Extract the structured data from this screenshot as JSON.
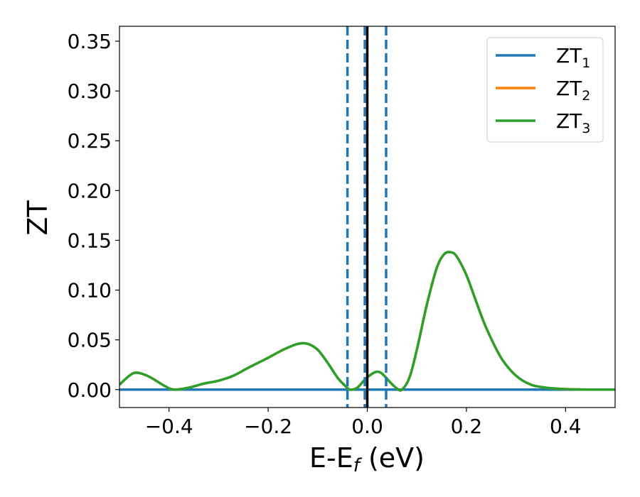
{
  "chart_data": {
    "type": "line",
    "xlabel": "E-E",
    "xlabel_sub": "f",
    "xlabel_unit": " (eV)",
    "ylabel": "ZT",
    "xlim": [
      -0.5,
      0.5
    ],
    "ylim": [
      -0.018,
      0.365
    ],
    "xticks": [
      -0.4,
      -0.2,
      0.0,
      0.2,
      0.4
    ],
    "xtick_labels": [
      "−0.4",
      "−0.2",
      "0.0",
      "0.2",
      "0.4"
    ],
    "yticks": [
      0.0,
      0.05,
      0.1,
      0.15,
      0.2,
      0.25,
      0.3,
      0.35
    ],
    "ytick_labels": [
      "0.00",
      "0.05",
      "0.10",
      "0.15",
      "0.20",
      "0.25",
      "0.30",
      "0.35"
    ],
    "grid": false,
    "legend_position": "top-right",
    "series": [
      {
        "name": "ZT",
        "sub": "1",
        "color": "#1f77b4",
        "x": [
          -0.5,
          -0.4,
          -0.3,
          -0.2,
          -0.1,
          0.0,
          0.1,
          0.2,
          0.3,
          0.4,
          0.5
        ],
        "y": [
          0.0,
          0.0,
          0.0,
          0.0,
          0.0,
          0.0,
          0.0,
          0.0,
          0.0,
          0.0,
          0.0
        ]
      },
      {
        "name": "ZT",
        "sub": "2",
        "color": "#ff7f0e",
        "x": [
          -0.5,
          -0.48,
          -0.465,
          -0.44,
          -0.41,
          -0.39,
          -0.36,
          -0.33,
          -0.3,
          -0.27,
          -0.24,
          -0.2,
          -0.17,
          -0.14,
          -0.12,
          -0.1,
          -0.08,
          -0.06,
          -0.045,
          -0.035,
          -0.02,
          -0.005,
          0.01,
          0.02,
          0.03,
          0.045,
          0.06,
          0.07,
          0.085,
          0.1,
          0.12,
          0.14,
          0.155,
          0.168,
          0.18,
          0.2,
          0.22,
          0.24,
          0.27,
          0.3,
          0.33,
          0.36,
          0.4,
          0.45,
          0.5
        ],
        "y": [
          0.005,
          0.014,
          0.017,
          0.013,
          0.004,
          0.0,
          0.002,
          0.006,
          0.009,
          0.014,
          0.022,
          0.032,
          0.04,
          0.046,
          0.046,
          0.04,
          0.027,
          0.012,
          0.004,
          0.0,
          0.002,
          0.01,
          0.016,
          0.018,
          0.016,
          0.008,
          0.001,
          0.0,
          0.012,
          0.04,
          0.085,
          0.122,
          0.136,
          0.138,
          0.134,
          0.115,
          0.088,
          0.062,
          0.032,
          0.014,
          0.005,
          0.002,
          0.0005,
          0.0,
          0.0
        ]
      },
      {
        "name": "ZT",
        "sub": "3",
        "color": "#2ca02c",
        "x": [
          -0.5,
          -0.48,
          -0.465,
          -0.44,
          -0.41,
          -0.39,
          -0.36,
          -0.33,
          -0.3,
          -0.27,
          -0.24,
          -0.2,
          -0.17,
          -0.14,
          -0.12,
          -0.1,
          -0.08,
          -0.06,
          -0.045,
          -0.035,
          -0.02,
          -0.005,
          0.01,
          0.02,
          0.03,
          0.045,
          0.06,
          0.07,
          0.085,
          0.1,
          0.12,
          0.14,
          0.155,
          0.168,
          0.18,
          0.2,
          0.22,
          0.24,
          0.27,
          0.3,
          0.33,
          0.36,
          0.4,
          0.45,
          0.5
        ],
        "y": [
          0.005,
          0.014,
          0.017,
          0.013,
          0.004,
          0.0,
          0.002,
          0.006,
          0.009,
          0.014,
          0.022,
          0.032,
          0.04,
          0.046,
          0.046,
          0.04,
          0.027,
          0.012,
          0.004,
          0.0,
          0.002,
          0.01,
          0.016,
          0.018,
          0.016,
          0.008,
          0.001,
          0.0,
          0.012,
          0.04,
          0.085,
          0.122,
          0.136,
          0.138,
          0.134,
          0.115,
          0.088,
          0.062,
          0.032,
          0.014,
          0.005,
          0.002,
          0.0005,
          0.0,
          0.0
        ]
      }
    ],
    "vlines": [
      {
        "x": -0.04,
        "style": "dashed",
        "color": "#1f77b4"
      },
      {
        "x": -0.005,
        "style": "dashed",
        "color": "#1f77b4"
      },
      {
        "x": 0.0,
        "style": "solid",
        "color": "#000000"
      },
      {
        "x": 0.038,
        "style": "dashed",
        "color": "#1f77b4"
      }
    ]
  }
}
